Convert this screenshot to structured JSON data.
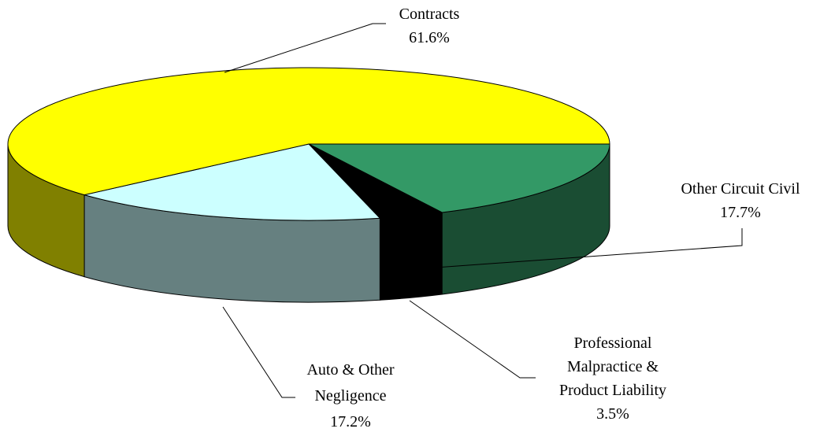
{
  "chart_data": {
    "type": "pie",
    "categories": [
      "Other Circuit Civil",
      "Professional Malpractice & Product Liability",
      "Auto & Other Negligence",
      "Contracts"
    ],
    "values": [
      17.7,
      3.5,
      17.2,
      61.6
    ],
    "value_labels": [
      "17.7%",
      "3.5%",
      "17.2%",
      "61.6%"
    ],
    "colors": [
      "#339966",
      "#000000",
      "#ccffff",
      "#ffff00"
    ]
  }
}
